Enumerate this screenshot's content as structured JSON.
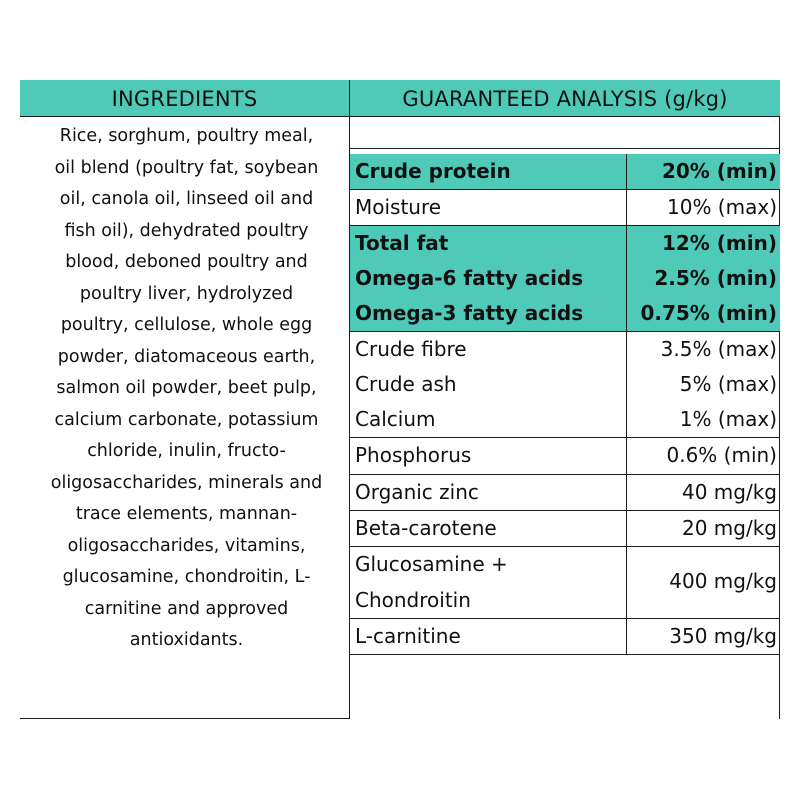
{
  "headers": {
    "ingredients": "INGREDIENTS",
    "analysis": "GUARANTEED ANALYSIS (g/kg)"
  },
  "ingredients_text": "Rice, sorghum, poultry meal, oil blend (poultry fat, soybean oil, canola oil, linseed oil and fish oil), dehydrated poultry blood, deboned poultry and poultry liver, hydrolyzed poultry, cellulose, whole egg powder, diatomaceous earth, salmon oil powder, beet pulp, calcium carbonate, potassium chloride, inulin, fructo-oligosaccharides, minerals and trace elements, mannan-oligosaccharides, vitamins, glucosamine, chondroitin, L-carnitine and approved antioxidants.",
  "analysis_rows": [
    {
      "name": "Crude protein",
      "value": "20% (min)",
      "highlight": true
    },
    {
      "name": "Moisture",
      "value": "10% (max)",
      "highlight": false
    },
    {
      "name": "Total fat",
      "value": "12% (min)",
      "highlight": true
    },
    {
      "name": "Omega-6 fatty acids",
      "value": "2.5% (min)",
      "highlight": true
    },
    {
      "name": "Omega-3 fatty acids",
      "value": "0.75% (min)",
      "highlight": true
    },
    {
      "name": "Crude fibre",
      "value": "3.5% (max)",
      "highlight": false
    },
    {
      "name": "Crude ash",
      "value": "5% (max)",
      "highlight": false
    },
    {
      "name": "Calcium",
      "value": "1% (max)",
      "highlight": false
    },
    {
      "name": "Phosphorus",
      "value": "0.6% (min)",
      "highlight": false
    },
    {
      "name": "Organic zinc",
      "value": "40 mg/kg",
      "highlight": false
    },
    {
      "name": "Beta-carotene",
      "value": "20 mg/kg",
      "highlight": false
    },
    {
      "name": "Glucosamine +",
      "name_line2": "Chondroitin",
      "value": "400 mg/kg",
      "highlight": false
    },
    {
      "name": "L-carnitine",
      "value": "350 mg/kg",
      "highlight": false
    }
  ],
  "colors": {
    "teal": "#4fcab9",
    "line": "#1a1a1a"
  }
}
